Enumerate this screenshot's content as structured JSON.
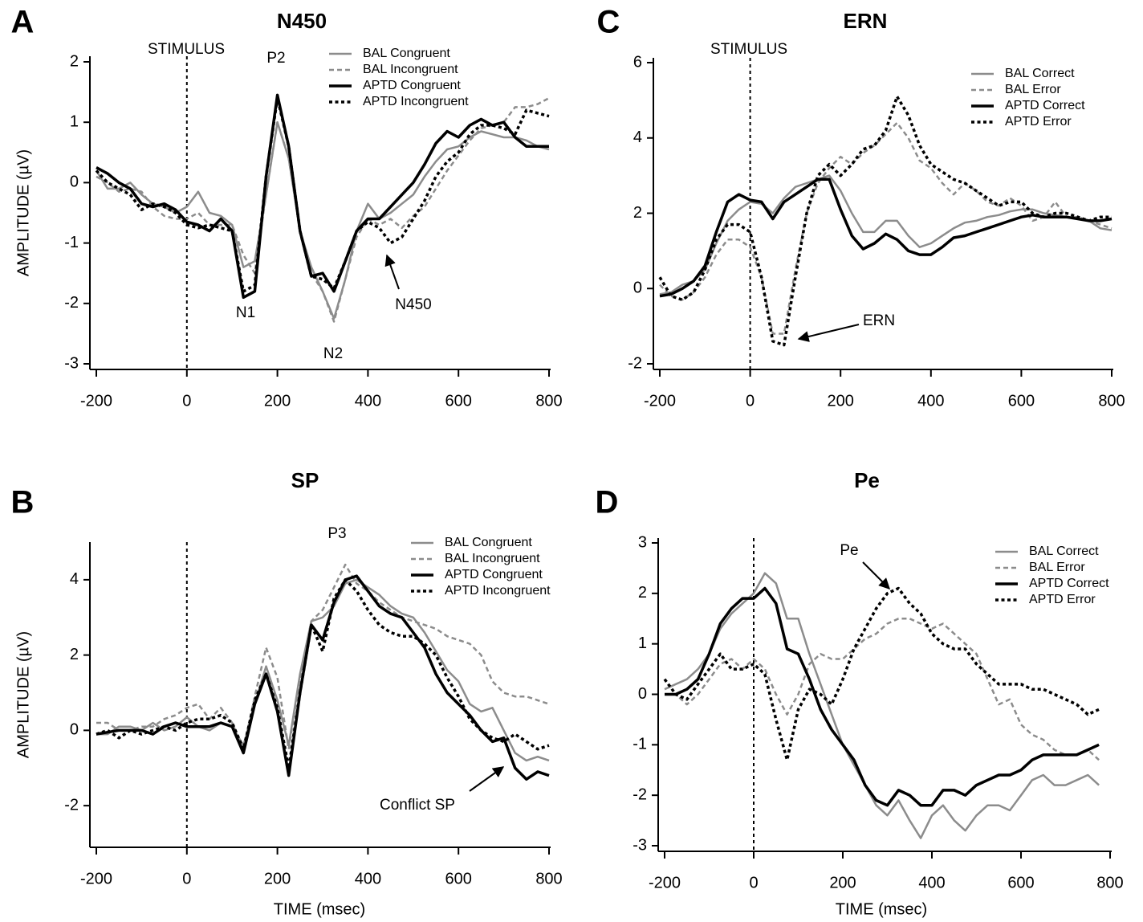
{
  "chart_data": [
    {
      "type": "line",
      "panel_label": "A",
      "title": "N450",
      "ylabel": "AMPLITUDE (µV)",
      "x": [
        -200,
        -175,
        -150,
        -125,
        -100,
        -75,
        -50,
        -25,
        0,
        25,
        50,
        75,
        100,
        125,
        150,
        175,
        200,
        225,
        250,
        275,
        300,
        325,
        350,
        375,
        400,
        425,
        450,
        475,
        500,
        525,
        550,
        575,
        600,
        625,
        650,
        675,
        700,
        725,
        750,
        775,
        800
      ],
      "series": [
        {
          "name": "BAL Congruent",
          "color": "#8c8c8c",
          "line_style": "solid",
          "values": [
            0.2,
            -0.1,
            -0.1,
            0.0,
            -0.2,
            -0.35,
            -0.4,
            -0.5,
            -0.4,
            -0.15,
            -0.5,
            -0.55,
            -0.7,
            -1.4,
            -1.3,
            -0.2,
            1.0,
            0.4,
            -0.8,
            -1.4,
            -1.8,
            -2.25,
            -1.6,
            -0.8,
            -0.35,
            -0.6,
            -0.5,
            -0.35,
            -0.2,
            0.1,
            0.35,
            0.55,
            0.6,
            0.75,
            0.85,
            0.8,
            0.75,
            0.75,
            0.7,
            0.6,
            0.55
          ]
        },
        {
          "name": "BAL Incongruent",
          "color": "#8c8c8c",
          "line_style": "dashed",
          "values": [
            0.1,
            0.0,
            -0.15,
            -0.1,
            -0.15,
            -0.4,
            -0.55,
            -0.6,
            -0.6,
            -0.5,
            -0.7,
            -0.7,
            -0.7,
            -1.2,
            -1.5,
            -0.2,
            1.0,
            0.4,
            -0.8,
            -1.5,
            -1.8,
            -2.3,
            -1.6,
            -0.9,
            -0.6,
            -0.7,
            -0.6,
            -0.75,
            -0.55,
            -0.4,
            -0.1,
            0.2,
            0.45,
            0.7,
            0.9,
            0.95,
            1.0,
            1.25,
            1.25,
            1.3,
            1.4
          ]
        },
        {
          "name": "APTD Congruent",
          "color": "#000000",
          "line_style": "solid",
          "values": [
            0.25,
            0.15,
            0.0,
            -0.1,
            -0.35,
            -0.4,
            -0.35,
            -0.45,
            -0.65,
            -0.7,
            -0.8,
            -0.6,
            -0.8,
            -1.9,
            -1.8,
            0.1,
            1.45,
            0.6,
            -0.8,
            -1.55,
            -1.5,
            -1.8,
            -1.3,
            -0.8,
            -0.6,
            -0.6,
            -0.4,
            -0.2,
            0.0,
            0.3,
            0.65,
            0.85,
            0.75,
            0.95,
            1.05,
            0.95,
            1.0,
            0.75,
            0.6,
            0.6,
            0.6
          ]
        },
        {
          "name": "APTD Incongruent",
          "color": "#000000",
          "line_style": "dotted",
          "values": [
            0.2,
            0.0,
            -0.1,
            -0.2,
            -0.45,
            -0.35,
            -0.4,
            -0.5,
            -0.7,
            -0.75,
            -0.7,
            -0.75,
            -0.8,
            -1.8,
            -1.7,
            0.1,
            1.4,
            0.6,
            -0.8,
            -1.55,
            -1.6,
            -1.75,
            -1.3,
            -0.8,
            -0.65,
            -0.75,
            -1.0,
            -0.9,
            -0.6,
            -0.3,
            0.1,
            0.35,
            0.5,
            0.8,
            0.95,
            0.95,
            0.9,
            0.8,
            1.2,
            1.15,
            1.1
          ]
        }
      ],
      "xlim": [
        -200,
        800
      ],
      "ylim": [
        -3,
        2
      ],
      "xticks": [
        -200,
        0,
        200,
        400,
        600,
        800
      ],
      "yticks": [
        -3,
        -2,
        -1,
        0,
        1,
        2
      ],
      "legend": "top-right",
      "annotations": [
        "STIMULUS",
        "P2",
        "N1",
        "N2",
        "N450"
      ]
    },
    {
      "type": "line",
      "panel_label": "B",
      "title": "SP",
      "ylabel": "AMPLITUDE (µV)",
      "xlabel": "TIME (msec)",
      "x": [
        -200,
        -175,
        -150,
        -125,
        -100,
        -75,
        -50,
        -25,
        0,
        25,
        50,
        75,
        100,
        125,
        150,
        175,
        200,
        225,
        250,
        275,
        300,
        325,
        350,
        375,
        400,
        425,
        450,
        475,
        500,
        525,
        550,
        575,
        600,
        625,
        650,
        675,
        700,
        725,
        750,
        775,
        800
      ],
      "series": [
        {
          "name": "BAL Congruent",
          "color": "#8c8c8c",
          "line_style": "solid",
          "values": [
            -0.1,
            -0.1,
            0.1,
            0.1,
            0.0,
            0.2,
            0.0,
            0.1,
            0.35,
            0.1,
            0.0,
            0.2,
            0.1,
            -0.4,
            0.7,
            1.7,
            0.8,
            -0.4,
            1.5,
            2.9,
            3.0,
            3.3,
            3.9,
            4.0,
            3.8,
            3.6,
            3.3,
            3.1,
            3.0,
            2.6,
            2.1,
            1.6,
            1.3,
            0.7,
            0.5,
            0.6,
            0.0,
            -0.6,
            -0.8,
            -0.7,
            -0.8
          ]
        },
        {
          "name": "BAL Incongruent",
          "color": "#8c8c8c",
          "line_style": "dashed",
          "values": [
            0.2,
            0.2,
            0.0,
            0.0,
            0.1,
            0.1,
            0.3,
            0.4,
            0.6,
            0.7,
            0.3,
            0.6,
            0.2,
            -0.5,
            0.9,
            2.2,
            1.4,
            -0.5,
            1.4,
            2.9,
            3.2,
            3.8,
            4.4,
            3.9,
            3.7,
            3.4,
            3.2,
            3.0,
            2.9,
            2.8,
            2.7,
            2.5,
            2.4,
            2.3,
            2.0,
            1.3,
            1.0,
            0.9,
            0.9,
            0.8,
            0.7
          ]
        },
        {
          "name": "APTD Congruent",
          "color": "#000000",
          "line_style": "solid",
          "values": [
            -0.1,
            -0.05,
            0.0,
            0.0,
            0.0,
            -0.1,
            0.1,
            0.2,
            0.1,
            0.1,
            0.1,
            0.2,
            0.1,
            -0.6,
            0.7,
            1.5,
            0.5,
            -1.2,
            1.0,
            2.8,
            2.4,
            3.4,
            4.0,
            4.1,
            3.7,
            3.3,
            3.1,
            3.0,
            2.6,
            2.2,
            1.5,
            1.0,
            0.7,
            0.4,
            0.0,
            -0.3,
            -0.2,
            -1.0,
            -1.3,
            -1.1,
            -1.2
          ]
        },
        {
          "name": "APTD Incongruent",
          "color": "#000000",
          "line_style": "dotted",
          "values": [
            -0.1,
            0.0,
            -0.2,
            0.0,
            -0.1,
            0.0,
            0.1,
            0.0,
            0.2,
            0.3,
            0.3,
            0.4,
            0.2,
            -0.5,
            0.8,
            1.5,
            0.6,
            -1.0,
            1.0,
            2.8,
            2.1,
            3.5,
            4.0,
            3.7,
            3.2,
            2.8,
            2.6,
            2.5,
            2.5,
            2.3,
            2.0,
            1.4,
            0.9,
            0.3,
            0.0,
            -0.2,
            -0.3,
            -0.1,
            -0.3,
            -0.5,
            -0.4
          ]
        }
      ],
      "xlim": [
        -200,
        800
      ],
      "ylim": [
        -3,
        5
      ],
      "xticks": [
        -200,
        0,
        200,
        400,
        600,
        800
      ],
      "yticks": [
        -2,
        0,
        2,
        4
      ],
      "legend": "top-right",
      "annotations": [
        "P3",
        "Conflict SP"
      ]
    },
    {
      "type": "line",
      "panel_label": "C",
      "title": "ERN",
      "x": [
        -200,
        -175,
        -150,
        -125,
        -100,
        -75,
        -50,
        -25,
        0,
        25,
        50,
        75,
        100,
        125,
        150,
        175,
        200,
        225,
        250,
        275,
        300,
        325,
        350,
        375,
        400,
        425,
        450,
        475,
        500,
        525,
        550,
        575,
        600,
        625,
        650,
        675,
        700,
        725,
        750,
        775,
        800
      ],
      "series": [
        {
          "name": "BAL Correct",
          "color": "#8c8c8c",
          "line_style": "solid",
          "values": [
            -0.15,
            -0.1,
            0.1,
            0.2,
            0.5,
            1.2,
            1.8,
            2.1,
            2.3,
            2.25,
            2.0,
            2.4,
            2.7,
            2.8,
            2.9,
            3.0,
            2.6,
            2.0,
            1.5,
            1.5,
            1.8,
            1.8,
            1.4,
            1.1,
            1.2,
            1.4,
            1.6,
            1.75,
            1.8,
            1.9,
            1.95,
            2.05,
            2.1,
            2.1,
            2.0,
            1.95,
            1.9,
            1.85,
            1.8,
            1.6,
            1.55
          ]
        },
        {
          "name": "BAL Error",
          "color": "#8c8c8c",
          "line_style": "dashed",
          "values": [
            0.1,
            -0.2,
            -0.3,
            -0.1,
            0.3,
            0.9,
            1.3,
            1.3,
            1.1,
            0.3,
            -1.2,
            -1.2,
            0.5,
            2.0,
            2.8,
            3.2,
            3.5,
            3.3,
            3.6,
            3.8,
            4.1,
            4.4,
            4.0,
            3.4,
            3.2,
            2.8,
            2.5,
            2.8,
            2.6,
            2.3,
            2.2,
            2.4,
            2.2,
            1.8,
            1.9,
            2.3,
            1.9,
            1.9,
            1.8,
            1.7,
            1.6
          ]
        },
        {
          "name": "APTD Correct",
          "color": "#000000",
          "line_style": "solid",
          "values": [
            -0.2,
            -0.15,
            0.0,
            0.2,
            0.6,
            1.5,
            2.3,
            2.5,
            2.35,
            2.3,
            1.85,
            2.3,
            2.5,
            2.7,
            2.9,
            2.9,
            2.1,
            1.4,
            1.05,
            1.2,
            1.45,
            1.3,
            1.0,
            0.9,
            0.9,
            1.1,
            1.35,
            1.4,
            1.5,
            1.6,
            1.7,
            1.8,
            1.9,
            1.95,
            1.9,
            1.9,
            1.9,
            1.85,
            1.8,
            1.8,
            1.85
          ]
        },
        {
          "name": "APTD Error",
          "color": "#000000",
          "line_style": "dotted",
          "values": [
            0.3,
            -0.2,
            -0.3,
            -0.1,
            0.5,
            1.3,
            1.7,
            1.7,
            1.5,
            0.3,
            -1.4,
            -1.5,
            0.3,
            2.0,
            3.0,
            3.3,
            3.0,
            3.3,
            3.7,
            3.8,
            4.2,
            5.1,
            4.6,
            3.8,
            3.3,
            3.1,
            2.9,
            2.8,
            2.6,
            2.4,
            2.2,
            2.3,
            2.3,
            2.0,
            1.9,
            2.0,
            2.0,
            1.9,
            1.8,
            1.9,
            1.9
          ]
        }
      ],
      "xlim": [
        -200,
        800
      ],
      "ylim": [
        -2,
        6
      ],
      "xticks": [
        -200,
        0,
        200,
        400,
        600,
        800
      ],
      "yticks": [
        -2,
        0,
        2,
        4,
        6
      ],
      "legend": "top-right",
      "annotations": [
        "STIMULUS",
        "ERN"
      ]
    },
    {
      "type": "line",
      "panel_label": "D",
      "title": "Pe",
      "xlabel": "TIME (msec)",
      "x": [
        -200,
        -175,
        -150,
        -125,
        -100,
        -75,
        -50,
        -25,
        0,
        25,
        50,
        75,
        100,
        125,
        150,
        175,
        200,
        225,
        250,
        275,
        300,
        325,
        350,
        375,
        400,
        425,
        450,
        475,
        500,
        525,
        550,
        575,
        600,
        625,
        650,
        675,
        700,
        725,
        750,
        775
      ],
      "series": [
        {
          "name": "BAL Correct",
          "color": "#8c8c8c",
          "line_style": "solid",
          "values": [
            0.1,
            0.2,
            0.3,
            0.5,
            0.8,
            1.3,
            1.6,
            1.8,
            2.0,
            2.4,
            2.2,
            1.5,
            1.5,
            0.8,
            0.2,
            -0.4,
            -1.0,
            -1.4,
            -1.8,
            -2.2,
            -2.4,
            -2.1,
            -2.5,
            -2.85,
            -2.4,
            -2.2,
            -2.5,
            -2.7,
            -2.4,
            -2.2,
            -2.2,
            -2.3,
            -2.0,
            -1.7,
            -1.6,
            -1.8,
            -1.8,
            -1.7,
            -1.6,
            -1.8
          ]
        },
        {
          "name": "BAL Error",
          "color": "#8c8c8c",
          "line_style": "dashed",
          "values": [
            0.0,
            0.0,
            -0.2,
            0.0,
            0.3,
            0.6,
            0.7,
            0.5,
            0.7,
            0.5,
            0.0,
            -0.4,
            0.0,
            0.6,
            0.8,
            0.7,
            0.7,
            0.9,
            1.1,
            1.2,
            1.4,
            1.5,
            1.5,
            1.4,
            1.3,
            1.4,
            1.2,
            1.0,
            0.8,
            0.3,
            -0.2,
            -0.1,
            -0.6,
            -0.8,
            -0.9,
            -1.1,
            -1.2,
            -1.2,
            -1.1,
            -1.3
          ]
        },
        {
          "name": "APTD Correct",
          "color": "#000000",
          "line_style": "solid",
          "values": [
            0.0,
            0.0,
            0.1,
            0.3,
            0.8,
            1.4,
            1.7,
            1.9,
            1.9,
            2.1,
            1.8,
            0.9,
            0.8,
            0.3,
            -0.3,
            -0.7,
            -1.0,
            -1.3,
            -1.8,
            -2.1,
            -2.2,
            -1.9,
            -2.0,
            -2.2,
            -2.2,
            -1.9,
            -1.9,
            -2.0,
            -1.8,
            -1.7,
            -1.6,
            -1.6,
            -1.5,
            -1.3,
            -1.2,
            -1.2,
            -1.2,
            -1.2,
            -1.1,
            -1.0
          ]
        },
        {
          "name": "APTD Error",
          "color": "#000000",
          "line_style": "dotted",
          "values": [
            0.3,
            0.0,
            -0.1,
            0.2,
            0.5,
            0.8,
            0.5,
            0.5,
            0.6,
            0.4,
            -0.5,
            -1.3,
            -0.3,
            0.1,
            0.0,
            -0.2,
            0.3,
            0.9,
            1.3,
            1.7,
            2.0,
            2.1,
            1.8,
            1.6,
            1.2,
            1.0,
            0.9,
            0.9,
            0.6,
            0.4,
            0.2,
            0.2,
            0.2,
            0.1,
            0.1,
            0.0,
            -0.1,
            -0.2,
            -0.4,
            -0.3
          ]
        }
      ],
      "xlim": [
        -200,
        800
      ],
      "ylim": [
        -3,
        3
      ],
      "xticks": [
        -200,
        0,
        200,
        400,
        600,
        800
      ],
      "yticks": [
        -3,
        -2,
        -1,
        0,
        1,
        2,
        3
      ],
      "legend": "top-right",
      "annotations": [
        "Pe"
      ]
    }
  ]
}
